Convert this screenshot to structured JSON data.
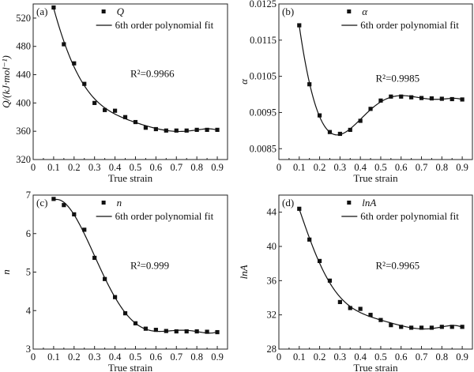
{
  "chart_data": [
    {
      "type": "scatter",
      "panel_label": "(a)",
      "xlabel": "True strain",
      "ylabel": "Q/(kJ·mol⁻¹)",
      "xlim": [
        0,
        0.95
      ],
      "ylim": [
        320,
        540
      ],
      "xticks": [
        "0",
        "0.1",
        "0.2",
        "0.3",
        "0.4",
        "0.5",
        "0.6",
        "0.7",
        "0.8",
        "0.9"
      ],
      "yticks": [
        "320",
        "360",
        "400",
        "440",
        "480",
        "520"
      ],
      "legend": {
        "marker": "Q",
        "line": "6th order polynomial fit",
        "position": "top-right"
      },
      "annotation": "R²=0.9966",
      "fit_degree": 6,
      "x": [
        0.1,
        0.15,
        0.2,
        0.25,
        0.3,
        0.35,
        0.4,
        0.45,
        0.5,
        0.55,
        0.6,
        0.65,
        0.7,
        0.75,
        0.8,
        0.85,
        0.9
      ],
      "y": [
        535,
        483,
        456,
        427,
        400,
        390,
        389,
        380,
        373,
        365,
        363,
        361,
        361,
        361,
        362,
        362,
        362
      ],
      "marker_color": "#111111",
      "grid": false
    },
    {
      "type": "scatter",
      "panel_label": "(b)",
      "xlabel": "True strain",
      "ylabel": "α",
      "xlim": [
        0,
        0.95
      ],
      "ylim": [
        0.0082,
        0.0125
      ],
      "xticks": [
        "0",
        "0.1",
        "0.2",
        "0.3",
        "0.4",
        "0.5",
        "0.6",
        "0.7",
        "0.8",
        "0.9"
      ],
      "yticks": [
        "0.0085",
        "0.0095",
        "0.0105",
        "0.0115",
        "0.0125"
      ],
      "legend": {
        "marker": "α",
        "line": "6th order polynomial fit",
        "position": "top-right"
      },
      "annotation": "R²=0.9985",
      "fit_degree": 6,
      "x": [
        0.1,
        0.15,
        0.2,
        0.25,
        0.3,
        0.35,
        0.4,
        0.45,
        0.5,
        0.55,
        0.6,
        0.65,
        0.7,
        0.75,
        0.8,
        0.85,
        0.9
      ],
      "y": [
        0.01191,
        0.01028,
        0.00942,
        0.00896,
        0.00891,
        0.00902,
        0.00927,
        0.0096,
        0.00983,
        0.00994,
        0.00994,
        0.00992,
        0.0099,
        0.00989,
        0.00988,
        0.00987,
        0.00986
      ],
      "marker_color": "#111111",
      "grid": false
    },
    {
      "type": "scatter",
      "panel_label": "(c)",
      "xlabel": "True strain",
      "ylabel": "n",
      "xlim": [
        0,
        0.95
      ],
      "ylim": [
        3,
        7
      ],
      "xticks": [
        "0",
        "0.1",
        "0.2",
        "0.3",
        "0.4",
        "0.5",
        "0.6",
        "0.7",
        "0.8",
        "0.9"
      ],
      "yticks": [
        "3",
        "4",
        "5",
        "6",
        "7"
      ],
      "legend": {
        "marker": "n",
        "line": "6th order polynomial fit",
        "position": "top-right"
      },
      "annotation": "R²=0.999",
      "fit_degree": 6,
      "x": [
        0.1,
        0.15,
        0.2,
        0.25,
        0.3,
        0.35,
        0.4,
        0.45,
        0.5,
        0.55,
        0.6,
        0.65,
        0.7,
        0.75,
        0.8,
        0.85,
        0.9
      ],
      "y": [
        6.9,
        6.74,
        6.5,
        6.1,
        5.37,
        4.82,
        4.35,
        3.93,
        3.67,
        3.53,
        3.5,
        3.47,
        3.46,
        3.46,
        3.46,
        3.45,
        3.44
      ],
      "marker_color": "#111111",
      "grid": false
    },
    {
      "type": "scatter",
      "panel_label": "(d)",
      "xlabel": "True strain",
      "ylabel": "lnA",
      "xlim": [
        0,
        0.95
      ],
      "ylim": [
        28,
        46
      ],
      "xticks": [
        "0",
        "0.1",
        "0.2",
        "0.3",
        "0.4",
        "0.5",
        "0.6",
        "0.7",
        "0.8",
        "0.9"
      ],
      "yticks": [
        "28",
        "32",
        "36",
        "40",
        "44"
      ],
      "legend": {
        "marker": "lnA",
        "line": "6th order polynomial fit",
        "position": "top-right"
      },
      "annotation": "R²=0.9965",
      "fit_degree": 6,
      "x": [
        0.1,
        0.15,
        0.2,
        0.25,
        0.3,
        0.35,
        0.4,
        0.45,
        0.5,
        0.55,
        0.6,
        0.65,
        0.7,
        0.75,
        0.8,
        0.85,
        0.9
      ],
      "y": [
        44.4,
        40.8,
        38.3,
        36.0,
        33.5,
        32.8,
        32.7,
        32.0,
        31.4,
        30.8,
        30.6,
        30.5,
        30.5,
        30.5,
        30.6,
        30.6,
        30.6
      ],
      "marker_color": "#111111",
      "grid": false
    }
  ]
}
